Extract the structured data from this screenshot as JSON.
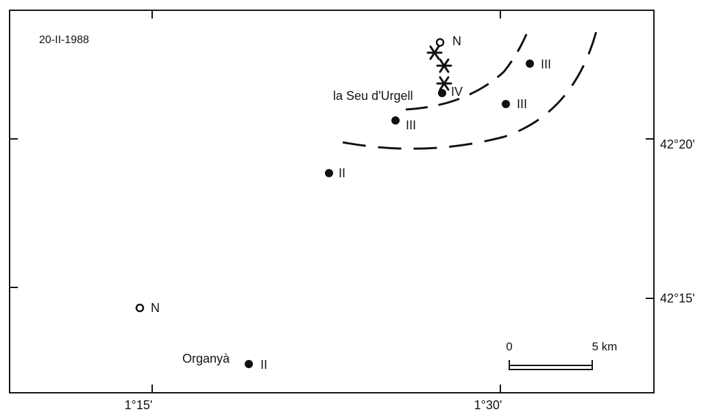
{
  "map": {
    "date": "20-II-1988",
    "x_tick_labels": [
      "1°15'",
      "1°30'"
    ],
    "y_tick_labels": [
      "42°20'",
      "42°15'"
    ],
    "places": [
      {
        "id": "la-seu",
        "name": "la Seu d'Urgell",
        "intensity": "IV"
      },
      {
        "id": "organya",
        "name": "Organyà",
        "intensity": "II"
      }
    ],
    "points": [
      {
        "id": "n-top",
        "symbol": "open",
        "label": "N"
      },
      {
        "id": "ne",
        "symbol": "filled",
        "label": "III"
      },
      {
        "id": "e",
        "symbol": "filled",
        "label": "III"
      },
      {
        "id": "mid",
        "symbol": "filled",
        "label": "III"
      },
      {
        "id": "sw",
        "symbol": "filled",
        "label": "II"
      },
      {
        "id": "n-left",
        "symbol": "open",
        "label": "N"
      }
    ],
    "scale_bar": {
      "start": "0",
      "end": "5 km"
    },
    "symbol_color": "#111111"
  }
}
